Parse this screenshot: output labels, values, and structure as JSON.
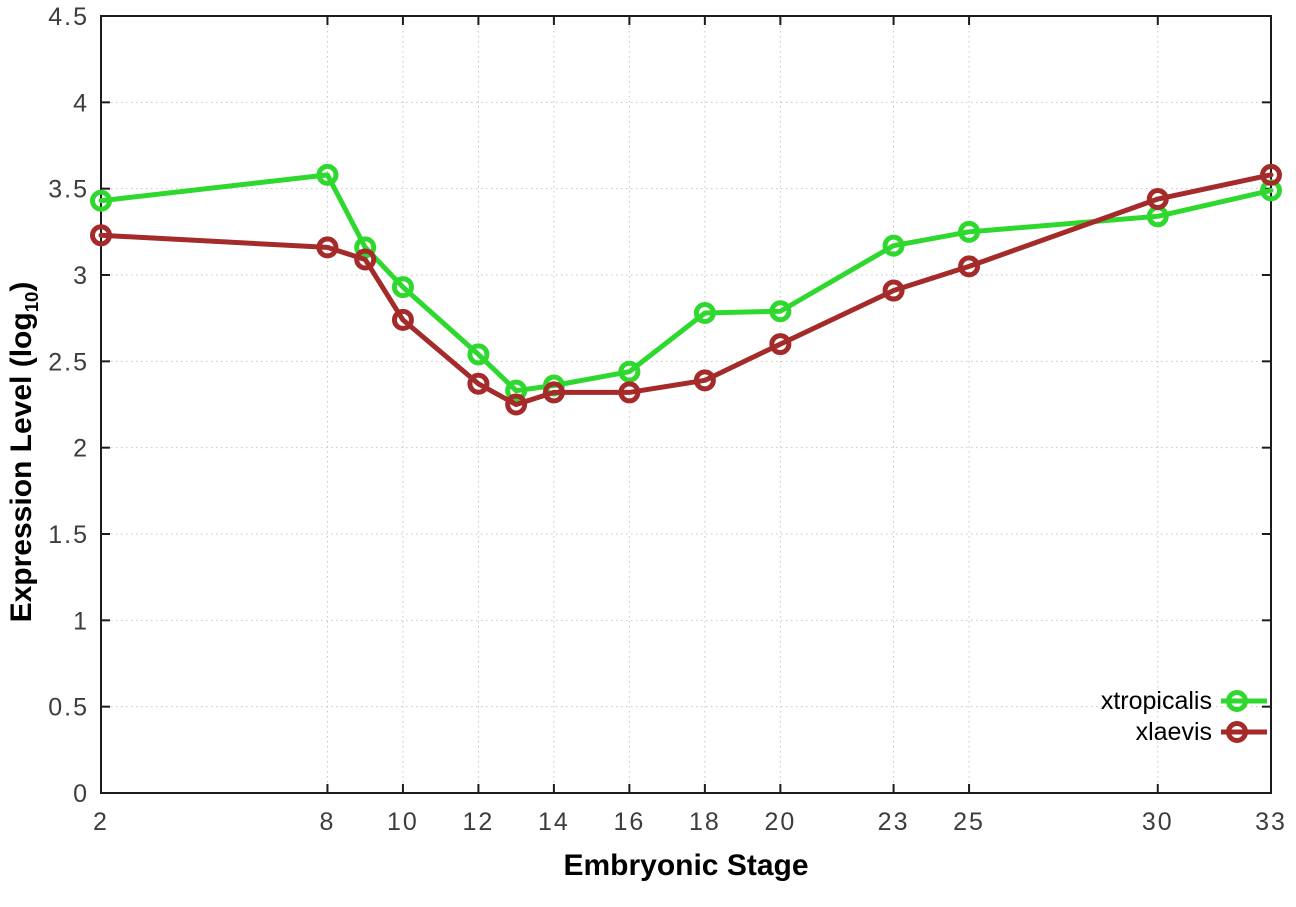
{
  "style": {
    "background": "#ffffff",
    "border_color": "#1c1c1c",
    "grid_color": "#c6c6c6",
    "tick_label_color": "#3d3d3d",
    "axis_label_color": "#000000"
  },
  "chart_data": {
    "type": "line",
    "title": "",
    "xlabel": "Embryonic Stage",
    "ylabel": "Expression Level (log10)",
    "ylabel_parts": {
      "main": "Expression Level (log",
      "sub": "10",
      "end": ")"
    },
    "xlim": [
      2,
      33
    ],
    "ylim": [
      0,
      4.5
    ],
    "grid": true,
    "legend_position": "bottom-right",
    "x": [
      2,
      8,
      9,
      10,
      12,
      13,
      14,
      16,
      18,
      20,
      23,
      25,
      30,
      33
    ],
    "xtick_values": [
      2,
      8,
      10,
      12,
      14,
      16,
      18,
      20,
      23,
      25,
      30,
      33
    ],
    "xtick_labels": [
      "2",
      "8",
      "10",
      "12",
      "14",
      "16",
      "18",
      "20",
      "23",
      "25",
      "30",
      "33"
    ],
    "ytick_values": [
      0,
      0.5,
      1,
      1.5,
      2,
      2.5,
      3,
      3.5,
      4,
      4.5
    ],
    "ytick_labels": [
      "0",
      "0.5",
      "1",
      "1.5",
      "2",
      "2.5",
      "3",
      "3.5",
      "4",
      "4.5"
    ],
    "series": [
      {
        "name": "xtropicalis",
        "color": "#2fd82f",
        "marker": "open-circle",
        "values": [
          3.43,
          3.58,
          3.16,
          2.93,
          2.54,
          2.33,
          2.36,
          2.44,
          2.78,
          2.79,
          3.17,
          3.25,
          3.34,
          3.49
        ]
      },
      {
        "name": "xlaevis",
        "color": "#a52a2a",
        "marker": "open-circle",
        "values": [
          3.23,
          3.16,
          3.09,
          2.74,
          2.37,
          2.25,
          2.32,
          2.32,
          2.39,
          2.6,
          2.91,
          3.05,
          3.44,
          3.58
        ]
      }
    ]
  }
}
